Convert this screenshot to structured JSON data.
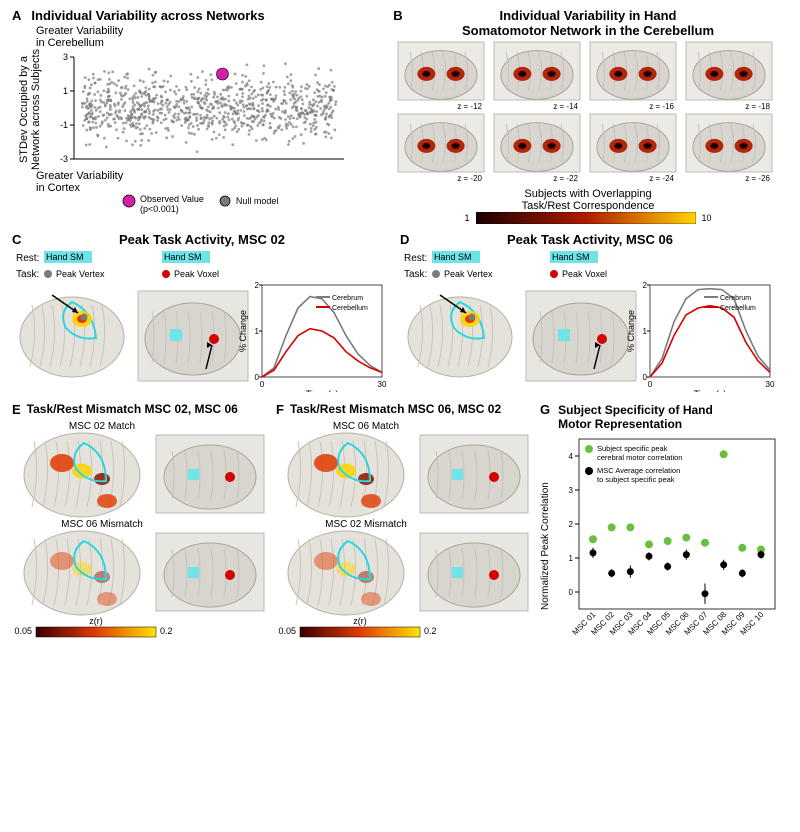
{
  "A": {
    "label": "A",
    "title": "Individual Variability across Networks",
    "y_upper": "Greater Variability\nin Cerebellum",
    "y_lower": "Greater Variability\nin Cortex",
    "y_axis": "STDev Occupied by a\nNetwork across Subjects",
    "scatter": {
      "ylim": [
        -3,
        3
      ],
      "yticks": [
        -3,
        -1,
        1,
        3
      ],
      "null_color": "#7b7b7b",
      "obs_color": "#d61fa9",
      "obs_x": 0.55,
      "obs_y": 2.0,
      "n_null": 900
    },
    "legend_obs": "Observed Value\n(p<0.001)",
    "legend_null": "Null model"
  },
  "B": {
    "label": "B",
    "title": "Individual Variability in Hand\nSomatomotor Network in the Cerebellum",
    "slices": [
      {
        "z": "z = -12"
      },
      {
        "z": "z = -14"
      },
      {
        "z": "z = -16"
      },
      {
        "z": "z = -18"
      },
      {
        "z": "z = -20"
      },
      {
        "z": "z = -22"
      },
      {
        "z": "z = -24"
      },
      {
        "z": "z = -26"
      }
    ],
    "colorbar_label": "Subjects with Overlapping\nTask/Rest Correspondence",
    "colorbar_min": "1",
    "colorbar_max": "10",
    "overlay_color_low": "#1a0000",
    "overlay_color_mid": "#b01a00",
    "overlay_color_high": "#ffd400"
  },
  "C": {
    "label": "C",
    "title": "Peak Task Activity, MSC 02",
    "rest_label": "Rest:",
    "hand_sm": "Hand SM",
    "task_label": "Task:",
    "peak_vertex": "Peak Vertex",
    "peak_voxel": "Peak Voxel",
    "dot_vertex_color": "#7b7b7b",
    "dot_voxel_color": "#d40000",
    "chart": {
      "xlabel": "Time (s)",
      "ylabel": "% Change",
      "ylim": [
        0,
        2
      ],
      "yticks": [
        0,
        1,
        2
      ],
      "xlim": [
        0,
        30
      ],
      "xticks": [
        0,
        30
      ],
      "series": {
        "Cerebrum": {
          "color": "#7b7b7b",
          "data": [
            [
              0,
              0.0
            ],
            [
              3,
              0.2
            ],
            [
              6,
              0.9
            ],
            [
              9,
              1.5
            ],
            [
              12,
              1.75
            ],
            [
              15,
              1.7
            ],
            [
              18,
              1.4
            ],
            [
              21,
              0.9
            ],
            [
              24,
              0.5
            ],
            [
              27,
              0.25
            ],
            [
              30,
              0.1
            ]
          ]
        },
        "Cerebellum": {
          "color": "#d40000",
          "data": [
            [
              0,
              0.0
            ],
            [
              3,
              0.15
            ],
            [
              6,
              0.55
            ],
            [
              9,
              0.9
            ],
            [
              12,
              1.05
            ],
            [
              15,
              1.0
            ],
            [
              18,
              0.85
            ],
            [
              21,
              0.55
            ],
            [
              24,
              0.35
            ],
            [
              27,
              0.2
            ],
            [
              30,
              0.1
            ]
          ]
        }
      },
      "legend": [
        "Cerebrum",
        "Cerebellum"
      ]
    }
  },
  "D": {
    "label": "D",
    "title": "Peak Task Activity, MSC 06",
    "rest_label": "Rest:",
    "hand_sm": "Hand SM",
    "task_label": "Task:",
    "peak_vertex": "Peak Vertex",
    "peak_voxel": "Peak Voxel",
    "dot_vertex_color": "#7b7b7b",
    "dot_voxel_color": "#d40000",
    "chart": {
      "xlabel": "Time (s)",
      "ylabel": "% Change",
      "ylim": [
        0,
        2
      ],
      "yticks": [
        0,
        1,
        2
      ],
      "xlim": [
        0,
        30
      ],
      "xticks": [
        0,
        30
      ],
      "series": {
        "Cerebrum": {
          "color": "#7b7b7b",
          "data": [
            [
              0,
              0.0
            ],
            [
              3,
              0.4
            ],
            [
              6,
              1.2
            ],
            [
              9,
              1.7
            ],
            [
              12,
              1.9
            ],
            [
              15,
              1.92
            ],
            [
              18,
              1.9
            ],
            [
              21,
              1.7
            ],
            [
              24,
              1.0
            ],
            [
              27,
              0.45
            ],
            [
              30,
              0.15
            ]
          ]
        },
        "Cerebellum": {
          "color": "#d40000",
          "data": [
            [
              0,
              0.0
            ],
            [
              3,
              0.3
            ],
            [
              6,
              0.9
            ],
            [
              9,
              1.35
            ],
            [
              12,
              1.5
            ],
            [
              15,
              1.55
            ],
            [
              18,
              1.5
            ],
            [
              21,
              1.3
            ],
            [
              24,
              0.75
            ],
            [
              27,
              0.35
            ],
            [
              30,
              0.1
            ]
          ]
        }
      },
      "legend": [
        "Cerebrum",
        "Cerebellum"
      ]
    }
  },
  "E": {
    "label": "E",
    "title": "Task/Rest Mismatch MSC 02, MSC 06",
    "row1": "MSC 02 Match",
    "row2": "MSC 06 Mismatch",
    "colorbar_label": "z(r)",
    "colorbar_min": "0.05",
    "colorbar_max": "0.2",
    "cmap_low": "#3a0000",
    "cmap_mid": "#e23a00",
    "cmap_high": "#ffe400"
  },
  "F": {
    "label": "F",
    "title": "Task/Rest Mismatch MSC 06, MSC 02",
    "row1": "MSC 06 Match",
    "row2": "MSC 02 Mismatch",
    "colorbar_label": "z(r)",
    "colorbar_min": "0.05",
    "colorbar_max": "0.2"
  },
  "G": {
    "label": "G",
    "title": "Subject Specificity of Hand\nMotor Representation",
    "xcats": [
      "MSC 01",
      "MSC 02",
      "MSC 03",
      "MSC 04",
      "MSC 05",
      "MSC 06",
      "MSC 07",
      "MSC 08",
      "MSC 09",
      "MSC 10"
    ],
    "ylim": [
      -0.5,
      4.5
    ],
    "yticks": [
      0,
      1,
      2,
      3,
      4
    ],
    "ylabel": "Normalized Peak Correlation",
    "series_subject": {
      "color": "#6abf3f",
      "label": "Subject specific peak\ncerebral motor correlation",
      "data": [
        1.55,
        1.9,
        1.9,
        1.4,
        1.5,
        1.6,
        1.45,
        4.05,
        1.3,
        1.25
      ]
    },
    "series_avg": {
      "color": "#000000",
      "label": "MSC Average correlation\nto subject specific peak",
      "data": [
        1.15,
        0.55,
        0.6,
        1.05,
        0.75,
        1.1,
        -0.05,
        0.8,
        0.55,
        1.1
      ],
      "err": [
        0.15,
        0.12,
        0.18,
        0.12,
        0.12,
        0.15,
        0.3,
        0.15,
        0.12,
        0.12
      ]
    }
  }
}
